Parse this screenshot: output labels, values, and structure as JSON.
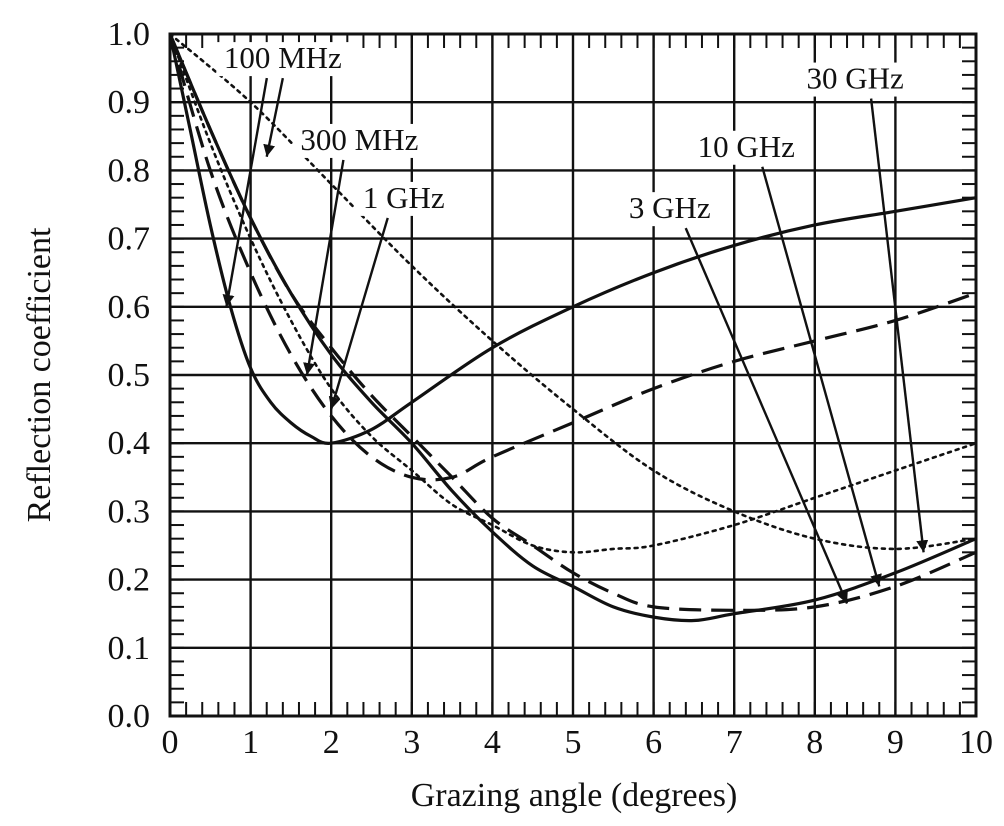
{
  "chart_data": {
    "type": "line",
    "title": "",
    "xlabel": "Grazing angle (degrees)",
    "ylabel": "Reflection coefficient",
    "xlim": [
      0,
      10
    ],
    "ylim": [
      0,
      1.0
    ],
    "x_ticks": [
      0,
      1,
      2,
      3,
      4,
      5,
      6,
      7,
      8,
      9,
      10
    ],
    "y_ticks": [
      0.0,
      0.1,
      0.2,
      0.3,
      0.4,
      0.5,
      0.6,
      0.7,
      0.8,
      0.9,
      1.0
    ],
    "x_tick_labels": [
      "0",
      "1",
      "2",
      "3",
      "4",
      "5",
      "6",
      "7",
      "8",
      "9",
      "10"
    ],
    "y_tick_labels": [
      "0.0",
      "0.1",
      "0.2",
      "0.3",
      "0.4",
      "0.5",
      "0.6",
      "0.7",
      "0.8",
      "0.9",
      "1.0"
    ],
    "grid": true,
    "series": [
      {
        "name": "100 MHz",
        "style": "solid",
        "points": [
          [
            0,
            1.0
          ],
          [
            0.25,
            0.86
          ],
          [
            0.5,
            0.72
          ],
          [
            0.75,
            0.6
          ],
          [
            1.0,
            0.51
          ],
          [
            1.25,
            0.46
          ],
          [
            1.5,
            0.43
          ],
          [
            1.75,
            0.41
          ],
          [
            2.0,
            0.4
          ],
          [
            2.5,
            0.42
          ],
          [
            3.0,
            0.46
          ],
          [
            4.0,
            0.54
          ],
          [
            5.0,
            0.6
          ],
          [
            6.0,
            0.65
          ],
          [
            7.0,
            0.69
          ],
          [
            8.0,
            0.72
          ],
          [
            9.0,
            0.74
          ],
          [
            10.0,
            0.76
          ]
        ]
      },
      {
        "name": "300 MHz",
        "style": "dashed",
        "points": [
          [
            0,
            1.0
          ],
          [
            0.5,
            0.8
          ],
          [
            1.0,
            0.65
          ],
          [
            1.5,
            0.53
          ],
          [
            2.0,
            0.44
          ],
          [
            2.5,
            0.38
          ],
          [
            3.0,
            0.35
          ],
          [
            3.5,
            0.35
          ],
          [
            4.0,
            0.38
          ],
          [
            5.0,
            0.43
          ],
          [
            6.0,
            0.48
          ],
          [
            7.0,
            0.52
          ],
          [
            8.0,
            0.55
          ],
          [
            9.0,
            0.58
          ],
          [
            10.0,
            0.62
          ]
        ]
      },
      {
        "name": "1 GHz",
        "style": "dotted",
        "points": [
          [
            0,
            1.0
          ],
          [
            0.5,
            0.84
          ],
          [
            1.0,
            0.7
          ],
          [
            1.5,
            0.58
          ],
          [
            2.0,
            0.48
          ],
          [
            2.5,
            0.41
          ],
          [
            3.0,
            0.36
          ],
          [
            3.5,
            0.31
          ],
          [
            4.0,
            0.28
          ],
          [
            4.5,
            0.25
          ],
          [
            5.0,
            0.24
          ],
          [
            5.5,
            0.245
          ],
          [
            6.0,
            0.25
          ],
          [
            7.0,
            0.28
          ],
          [
            8.0,
            0.32
          ],
          [
            9.0,
            0.36
          ],
          [
            10.0,
            0.4
          ]
        ]
      },
      {
        "name": "3 GHz",
        "style": "solid",
        "points": [
          [
            0,
            1.0
          ],
          [
            0.5,
            0.86
          ],
          [
            1.0,
            0.73
          ],
          [
            1.5,
            0.62
          ],
          [
            2.0,
            0.53
          ],
          [
            2.5,
            0.46
          ],
          [
            3.0,
            0.4
          ],
          [
            3.5,
            0.33
          ],
          [
            4.0,
            0.27
          ],
          [
            4.5,
            0.22
          ],
          [
            5.0,
            0.19
          ],
          [
            5.5,
            0.16
          ],
          [
            6.0,
            0.145
          ],
          [
            6.5,
            0.14
          ],
          [
            7.0,
            0.15
          ],
          [
            8.0,
            0.17
          ],
          [
            9.0,
            0.21
          ],
          [
            10.0,
            0.26
          ]
        ]
      },
      {
        "name": "10 GHz",
        "style": "dashed",
        "points": [
          [
            0,
            1.0
          ],
          [
            0.5,
            0.86
          ],
          [
            1.0,
            0.73
          ],
          [
            1.5,
            0.62
          ],
          [
            2.0,
            0.54
          ],
          [
            2.5,
            0.47
          ],
          [
            3.0,
            0.41
          ],
          [
            3.5,
            0.35
          ],
          [
            4.0,
            0.29
          ],
          [
            4.5,
            0.25
          ],
          [
            5.0,
            0.21
          ],
          [
            5.5,
            0.18
          ],
          [
            6.0,
            0.16
          ],
          [
            7.0,
            0.155
          ],
          [
            8.0,
            0.16
          ],
          [
            9.0,
            0.19
          ],
          [
            10.0,
            0.24
          ]
        ]
      },
      {
        "name": "30 GHz",
        "style": "dotted",
        "points": [
          [
            0,
            1.0
          ],
          [
            1.0,
            0.9
          ],
          [
            2.0,
            0.78
          ],
          [
            3.0,
            0.66
          ],
          [
            4.0,
            0.55
          ],
          [
            5.0,
            0.45
          ],
          [
            6.0,
            0.36
          ],
          [
            7.0,
            0.3
          ],
          [
            8.0,
            0.26
          ],
          [
            9.0,
            0.245
          ],
          [
            10.0,
            0.26
          ]
        ]
      }
    ],
    "annotations": [
      {
        "text": "100 MHz",
        "label_at": [
          1.4,
          0.95
        ],
        "arrows": [
          [
            0.7,
            0.6
          ],
          [
            1.2,
            0.82
          ]
        ]
      },
      {
        "text": "300 MHz",
        "label_at": [
          2.35,
          0.83
        ],
        "arrows": [
          [
            1.7,
            0.5
          ]
        ]
      },
      {
        "text": "1 GHz",
        "label_at": [
          2.9,
          0.745
        ],
        "arrows": [
          [
            2.0,
            0.45
          ]
        ]
      },
      {
        "text": "3 GHz",
        "label_at": [
          6.2,
          0.73
        ],
        "arrows": [
          [
            8.4,
            0.165
          ]
        ]
      },
      {
        "text": "10 GHz",
        "label_at": [
          7.15,
          0.82
        ],
        "arrows": [
          [
            8.8,
            0.19
          ]
        ]
      },
      {
        "text": "30 GHz",
        "label_at": [
          8.5,
          0.92
        ],
        "arrows": [
          [
            9.35,
            0.24
          ]
        ]
      }
    ]
  }
}
